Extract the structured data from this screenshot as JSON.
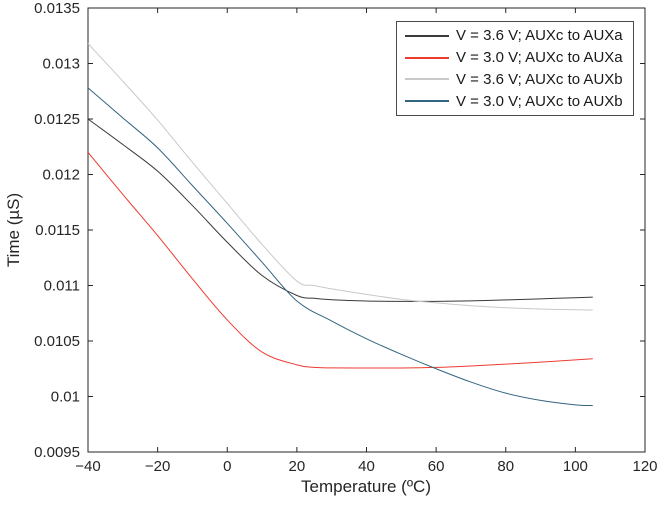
{
  "figure": {
    "background": "#ffffff",
    "axis_color": "#262626",
    "tick_label_color": "#262626"
  },
  "legend": {
    "border_color": "#4a4a4a",
    "background": "#ffffff"
  },
  "chart_data": {
    "type": "line",
    "title": "",
    "xlabel": "Temperature (ºC)",
    "ylabel": "Time (µS)",
    "xlim": [
      -40,
      120
    ],
    "ylim": [
      0.0095,
      0.0135
    ],
    "grid": false,
    "box": true,
    "legend_position": "top-right",
    "x_ticks": {
      "values": [
        -40,
        -20,
        0,
        20,
        40,
        60,
        80,
        100,
        120
      ],
      "labels": [
        "−40",
        "−20",
        "0",
        "20",
        "40",
        "60",
        "80",
        "100",
        "120"
      ]
    },
    "y_ticks": {
      "values": [
        0.0095,
        0.01,
        0.0105,
        0.011,
        0.0115,
        0.012,
        0.0125,
        0.013,
        0.0135
      ],
      "labels": [
        "0.0095",
        "0.01",
        "0.0105",
        "0.011",
        "0.0115",
        "0.012",
        "0.0125",
        "0.013",
        "0.0135"
      ]
    },
    "series": [
      {
        "name": "V = 3.6 V; AUXc to AUXa",
        "color": "#3a3a3a",
        "points": [
          [
            -40,
            0.0125
          ],
          [
            -30,
            0.01227
          ],
          [
            -20,
            0.01203
          ],
          [
            -10,
            0.01172
          ],
          [
            0,
            0.01139
          ],
          [
            10,
            0.01109
          ],
          [
            20,
            0.01091
          ],
          [
            25,
            0.010885
          ],
          [
            30,
            0.010872
          ],
          [
            40,
            0.01086
          ],
          [
            50,
            0.010857
          ],
          [
            60,
            0.010857
          ],
          [
            70,
            0.010862
          ],
          [
            80,
            0.01087
          ],
          [
            90,
            0.01088
          ],
          [
            100,
            0.01089
          ],
          [
            105,
            0.010895
          ]
        ]
      },
      {
        "name": "V = 3.0 V; AUXc to AUXa",
        "color": "#ed3c31",
        "points": [
          [
            -40,
            0.0122
          ],
          [
            -30,
            0.01182
          ],
          [
            -20,
            0.01145
          ],
          [
            -10,
            0.01106
          ],
          [
            0,
            0.01069
          ],
          [
            10,
            0.0104
          ],
          [
            20,
            0.010285
          ],
          [
            25,
            0.010262
          ],
          [
            30,
            0.010258
          ],
          [
            40,
            0.010257
          ],
          [
            50,
            0.010257
          ],
          [
            60,
            0.010262
          ],
          [
            70,
            0.010275
          ],
          [
            80,
            0.010292
          ],
          [
            90,
            0.01031
          ],
          [
            100,
            0.01033
          ],
          [
            105,
            0.01034
          ]
        ]
      },
      {
        "name": "V = 3.6 V; AUXc to AUXb",
        "color": "#c9c9c9",
        "points": [
          [
            -40,
            0.01318
          ],
          [
            -30,
            0.01284
          ],
          [
            -20,
            0.01249
          ],
          [
            -10,
            0.01211
          ],
          [
            0,
            0.01174
          ],
          [
            10,
            0.01137
          ],
          [
            20,
            0.01104
          ],
          [
            25,
            0.011
          ],
          [
            30,
            0.01097
          ],
          [
            40,
            0.01092
          ],
          [
            50,
            0.010875
          ],
          [
            60,
            0.010843
          ],
          [
            70,
            0.010818
          ],
          [
            80,
            0.0108
          ],
          [
            90,
            0.010788
          ],
          [
            100,
            0.010781
          ],
          [
            105,
            0.010779
          ]
        ]
      },
      {
        "name": "V = 3.0 V; AUXc to AUXb",
        "color": "#336480",
        "points": [
          [
            -40,
            0.01278
          ],
          [
            -30,
            0.01251
          ],
          [
            -20,
            0.01224
          ],
          [
            -10,
            0.0119
          ],
          [
            0,
            0.01156
          ],
          [
            10,
            0.01121
          ],
          [
            20,
            0.01086
          ],
          [
            30,
            0.01068
          ],
          [
            40,
            0.01052
          ],
          [
            50,
            0.01038
          ],
          [
            60,
            0.01025
          ],
          [
            70,
            0.01013
          ],
          [
            80,
            0.01003
          ],
          [
            90,
            0.009965
          ],
          [
            100,
            0.009925
          ],
          [
            105,
            0.009918
          ]
        ]
      }
    ]
  }
}
